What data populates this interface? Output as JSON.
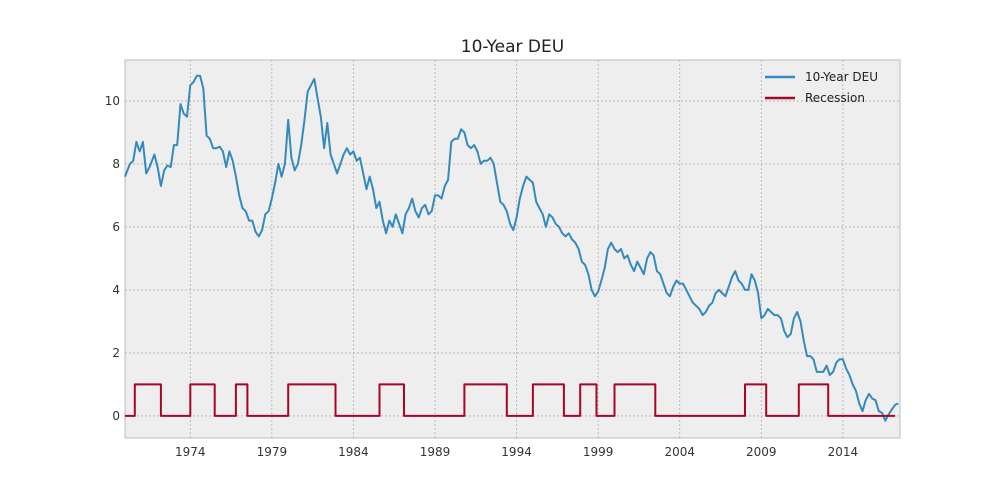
{
  "chart_data": {
    "type": "line",
    "title": "10-Year DEU",
    "xlabel": "",
    "ylabel": "",
    "xlim": [
      1970.0,
      2017.5
    ],
    "ylim": [
      -0.7,
      11.3
    ],
    "x_ticks": [
      1974,
      1979,
      1984,
      1989,
      1994,
      1999,
      2004,
      2009,
      2014
    ],
    "y_ticks": [
      0,
      2,
      4,
      6,
      8,
      10
    ],
    "grid": true,
    "legend_position": "top-right",
    "series": [
      {
        "name": "10-Year DEU",
        "color": "#348ABD",
        "points": [
          [
            1970.0,
            7.6
          ],
          [
            1970.3,
            8.0
          ],
          [
            1970.5,
            8.1
          ],
          [
            1970.7,
            8.7
          ],
          [
            1970.9,
            8.4
          ],
          [
            1971.1,
            8.7
          ],
          [
            1971.3,
            7.7
          ],
          [
            1971.5,
            7.9
          ],
          [
            1971.8,
            8.3
          ],
          [
            1972.0,
            7.9
          ],
          [
            1972.2,
            7.3
          ],
          [
            1972.4,
            7.8
          ],
          [
            1972.6,
            7.95
          ],
          [
            1972.8,
            7.9
          ],
          [
            1973.0,
            8.6
          ],
          [
            1973.2,
            8.6
          ],
          [
            1973.4,
            9.9
          ],
          [
            1973.6,
            9.6
          ],
          [
            1973.8,
            9.5
          ],
          [
            1974.0,
            10.5
          ],
          [
            1974.2,
            10.6
          ],
          [
            1974.4,
            10.8
          ],
          [
            1974.6,
            10.8
          ],
          [
            1974.8,
            10.4
          ],
          [
            1975.0,
            8.9
          ],
          [
            1975.2,
            8.8
          ],
          [
            1975.4,
            8.5
          ],
          [
            1975.6,
            8.5
          ],
          [
            1975.8,
            8.55
          ],
          [
            1976.0,
            8.4
          ],
          [
            1976.2,
            7.9
          ],
          [
            1976.4,
            8.4
          ],
          [
            1976.6,
            8.1
          ],
          [
            1976.8,
            7.6
          ],
          [
            1977.0,
            7.0
          ],
          [
            1977.2,
            6.6
          ],
          [
            1977.4,
            6.5
          ],
          [
            1977.6,
            6.2
          ],
          [
            1977.8,
            6.2
          ],
          [
            1978.0,
            5.85
          ],
          [
            1978.2,
            5.7
          ],
          [
            1978.4,
            5.9
          ],
          [
            1978.6,
            6.4
          ],
          [
            1978.8,
            6.5
          ],
          [
            1979.0,
            6.9
          ],
          [
            1979.2,
            7.4
          ],
          [
            1979.4,
            8.0
          ],
          [
            1979.6,
            7.6
          ],
          [
            1979.8,
            8.0
          ],
          [
            1980.0,
            9.4
          ],
          [
            1980.2,
            8.2
          ],
          [
            1980.4,
            7.8
          ],
          [
            1980.6,
            8.0
          ],
          [
            1980.8,
            8.6
          ],
          [
            1981.0,
            9.4
          ],
          [
            1981.2,
            10.3
          ],
          [
            1981.4,
            10.5
          ],
          [
            1981.6,
            10.7
          ],
          [
            1981.8,
            10.1
          ],
          [
            1982.0,
            9.5
          ],
          [
            1982.2,
            8.5
          ],
          [
            1982.4,
            9.3
          ],
          [
            1982.6,
            8.3
          ],
          [
            1982.8,
            8.0
          ],
          [
            1983.0,
            7.7
          ],
          [
            1983.2,
            8.0
          ],
          [
            1983.4,
            8.3
          ],
          [
            1983.6,
            8.5
          ],
          [
            1983.8,
            8.3
          ],
          [
            1984.0,
            8.4
          ],
          [
            1984.2,
            8.1
          ],
          [
            1984.4,
            8.2
          ],
          [
            1984.6,
            7.7
          ],
          [
            1984.8,
            7.2
          ],
          [
            1985.0,
            7.6
          ],
          [
            1985.2,
            7.2
          ],
          [
            1985.4,
            6.6
          ],
          [
            1985.6,
            6.8
          ],
          [
            1985.8,
            6.2
          ],
          [
            1986.0,
            5.8
          ],
          [
            1986.2,
            6.2
          ],
          [
            1986.4,
            6.0
          ],
          [
            1986.6,
            6.4
          ],
          [
            1986.8,
            6.1
          ],
          [
            1987.0,
            5.8
          ],
          [
            1987.2,
            6.4
          ],
          [
            1987.4,
            6.6
          ],
          [
            1987.6,
            6.9
          ],
          [
            1987.8,
            6.5
          ],
          [
            1988.0,
            6.3
          ],
          [
            1988.2,
            6.6
          ],
          [
            1988.4,
            6.7
          ],
          [
            1988.6,
            6.4
          ],
          [
            1988.8,
            6.5
          ],
          [
            1989.0,
            7.0
          ],
          [
            1989.2,
            7.0
          ],
          [
            1989.4,
            6.9
          ],
          [
            1989.6,
            7.3
          ],
          [
            1989.8,
            7.5
          ],
          [
            1990.0,
            8.7
          ],
          [
            1990.2,
            8.8
          ],
          [
            1990.4,
            8.8
          ],
          [
            1990.6,
            9.1
          ],
          [
            1990.8,
            9.0
          ],
          [
            1991.0,
            8.6
          ],
          [
            1991.2,
            8.5
          ],
          [
            1991.4,
            8.6
          ],
          [
            1991.6,
            8.4
          ],
          [
            1991.8,
            8.0
          ],
          [
            1992.0,
            8.1
          ],
          [
            1992.2,
            8.1
          ],
          [
            1992.4,
            8.2
          ],
          [
            1992.6,
            8.0
          ],
          [
            1992.8,
            7.4
          ],
          [
            1993.0,
            6.8
          ],
          [
            1993.2,
            6.7
          ],
          [
            1993.4,
            6.5
          ],
          [
            1993.6,
            6.1
          ],
          [
            1993.8,
            5.9
          ],
          [
            1994.0,
            6.3
          ],
          [
            1994.2,
            6.9
          ],
          [
            1994.4,
            7.3
          ],
          [
            1994.6,
            7.6
          ],
          [
            1994.8,
            7.5
          ],
          [
            1995.0,
            7.4
          ],
          [
            1995.2,
            6.8
          ],
          [
            1995.4,
            6.6
          ],
          [
            1995.6,
            6.4
          ],
          [
            1995.8,
            6.0
          ],
          [
            1996.0,
            6.4
          ],
          [
            1996.2,
            6.3
          ],
          [
            1996.4,
            6.1
          ],
          [
            1996.6,
            6.0
          ],
          [
            1996.8,
            5.8
          ],
          [
            1997.0,
            5.7
          ],
          [
            1997.2,
            5.8
          ],
          [
            1997.4,
            5.6
          ],
          [
            1997.6,
            5.5
          ],
          [
            1997.8,
            5.3
          ],
          [
            1998.0,
            4.9
          ],
          [
            1998.2,
            4.8
          ],
          [
            1998.4,
            4.5
          ],
          [
            1998.6,
            4.0
          ],
          [
            1998.8,
            3.8
          ],
          [
            1999.0,
            3.95
          ],
          [
            1999.2,
            4.3
          ],
          [
            1999.4,
            4.7
          ],
          [
            1999.6,
            5.3
          ],
          [
            1999.8,
            5.5
          ],
          [
            2000.0,
            5.3
          ],
          [
            2000.2,
            5.2
          ],
          [
            2000.4,
            5.3
          ],
          [
            2000.6,
            5.0
          ],
          [
            2000.8,
            5.1
          ],
          [
            2001.0,
            4.8
          ],
          [
            2001.2,
            4.6
          ],
          [
            2001.4,
            4.9
          ],
          [
            2001.6,
            4.7
          ],
          [
            2001.8,
            4.5
          ],
          [
            2002.0,
            5.0
          ],
          [
            2002.2,
            5.2
          ],
          [
            2002.4,
            5.1
          ],
          [
            2002.6,
            4.6
          ],
          [
            2002.8,
            4.5
          ],
          [
            2003.0,
            4.2
          ],
          [
            2003.2,
            3.9
          ],
          [
            2003.4,
            3.8
          ],
          [
            2003.6,
            4.1
          ],
          [
            2003.8,
            4.3
          ],
          [
            2004.0,
            4.2
          ],
          [
            2004.2,
            4.2
          ],
          [
            2004.4,
            4.0
          ],
          [
            2004.6,
            3.8
          ],
          [
            2004.8,
            3.6
          ],
          [
            2005.0,
            3.5
          ],
          [
            2005.2,
            3.4
          ],
          [
            2005.4,
            3.2
          ],
          [
            2005.6,
            3.3
          ],
          [
            2005.8,
            3.5
          ],
          [
            2006.0,
            3.6
          ],
          [
            2006.2,
            3.9
          ],
          [
            2006.4,
            4.0
          ],
          [
            2006.6,
            3.9
          ],
          [
            2006.8,
            3.8
          ],
          [
            2007.0,
            4.1
          ],
          [
            2007.2,
            4.4
          ],
          [
            2007.4,
            4.6
          ],
          [
            2007.6,
            4.3
          ],
          [
            2007.8,
            4.2
          ],
          [
            2008.0,
            4.0
          ],
          [
            2008.2,
            4.0
          ],
          [
            2008.4,
            4.5
          ],
          [
            2008.6,
            4.3
          ],
          [
            2008.8,
            3.9
          ],
          [
            2009.0,
            3.1
          ],
          [
            2009.2,
            3.2
          ],
          [
            2009.4,
            3.4
          ],
          [
            2009.6,
            3.3
          ],
          [
            2009.8,
            3.2
          ],
          [
            2010.0,
            3.2
          ],
          [
            2010.2,
            3.1
          ],
          [
            2010.4,
            2.7
          ],
          [
            2010.6,
            2.5
          ],
          [
            2010.8,
            2.6
          ],
          [
            2011.0,
            3.1
          ],
          [
            2011.2,
            3.3
          ],
          [
            2011.4,
            3.0
          ],
          [
            2011.6,
            2.4
          ],
          [
            2011.8,
            1.9
          ],
          [
            2012.0,
            1.9
          ],
          [
            2012.2,
            1.8
          ],
          [
            2012.4,
            1.4
          ],
          [
            2012.6,
            1.4
          ],
          [
            2012.8,
            1.4
          ],
          [
            2013.0,
            1.6
          ],
          [
            2013.2,
            1.3
          ],
          [
            2013.4,
            1.4
          ],
          [
            2013.6,
            1.7
          ],
          [
            2013.8,
            1.8
          ],
          [
            2014.0,
            1.8
          ],
          [
            2014.2,
            1.5
          ],
          [
            2014.4,
            1.3
          ],
          [
            2014.6,
            1.0
          ],
          [
            2014.8,
            0.8
          ],
          [
            2015.0,
            0.4
          ],
          [
            2015.2,
            0.15
          ],
          [
            2015.4,
            0.5
          ],
          [
            2015.6,
            0.7
          ],
          [
            2015.8,
            0.55
          ],
          [
            2016.0,
            0.5
          ],
          [
            2016.2,
            0.15
          ],
          [
            2016.4,
            0.1
          ],
          [
            2016.6,
            -0.15
          ],
          [
            2016.8,
            0.05
          ],
          [
            2017.0,
            0.2
          ],
          [
            2017.2,
            0.35
          ],
          [
            2017.4,
            0.4
          ]
        ]
      },
      {
        "name": "Recession",
        "color": "#A60628",
        "points": [
          [
            1970.0,
            0
          ],
          [
            1970.6,
            0
          ],
          [
            1970.6,
            1
          ],
          [
            1972.2,
            1
          ],
          [
            1972.2,
            0
          ],
          [
            1974.0,
            0
          ],
          [
            1974.0,
            1
          ],
          [
            1975.5,
            1
          ],
          [
            1975.5,
            0
          ],
          [
            1976.8,
            0
          ],
          [
            1976.8,
            1
          ],
          [
            1977.5,
            1
          ],
          [
            1977.5,
            0
          ],
          [
            1980.0,
            0
          ],
          [
            1980.0,
            1
          ],
          [
            1982.9,
            1
          ],
          [
            1982.9,
            0
          ],
          [
            1985.6,
            0
          ],
          [
            1985.6,
            1
          ],
          [
            1987.1,
            1
          ],
          [
            1987.1,
            0
          ],
          [
            1990.8,
            0
          ],
          [
            1990.8,
            1
          ],
          [
            1993.4,
            1
          ],
          [
            1993.4,
            0
          ],
          [
            1995.0,
            0
          ],
          [
            1995.0,
            1
          ],
          [
            1996.9,
            1
          ],
          [
            1996.9,
            0
          ],
          [
            1997.9,
            0
          ],
          [
            1997.9,
            1
          ],
          [
            1998.9,
            1
          ],
          [
            1998.9,
            0
          ],
          [
            2000.0,
            0
          ],
          [
            2000.0,
            1
          ],
          [
            2002.5,
            1
          ],
          [
            2002.5,
            0
          ],
          [
            2008.0,
            0
          ],
          [
            2008.0,
            1
          ],
          [
            2009.3,
            1
          ],
          [
            2009.3,
            0
          ],
          [
            2011.3,
            0
          ],
          [
            2011.3,
            1
          ],
          [
            2013.1,
            1
          ],
          [
            2013.1,
            0
          ],
          [
            2017.2,
            0
          ]
        ]
      }
    ]
  }
}
